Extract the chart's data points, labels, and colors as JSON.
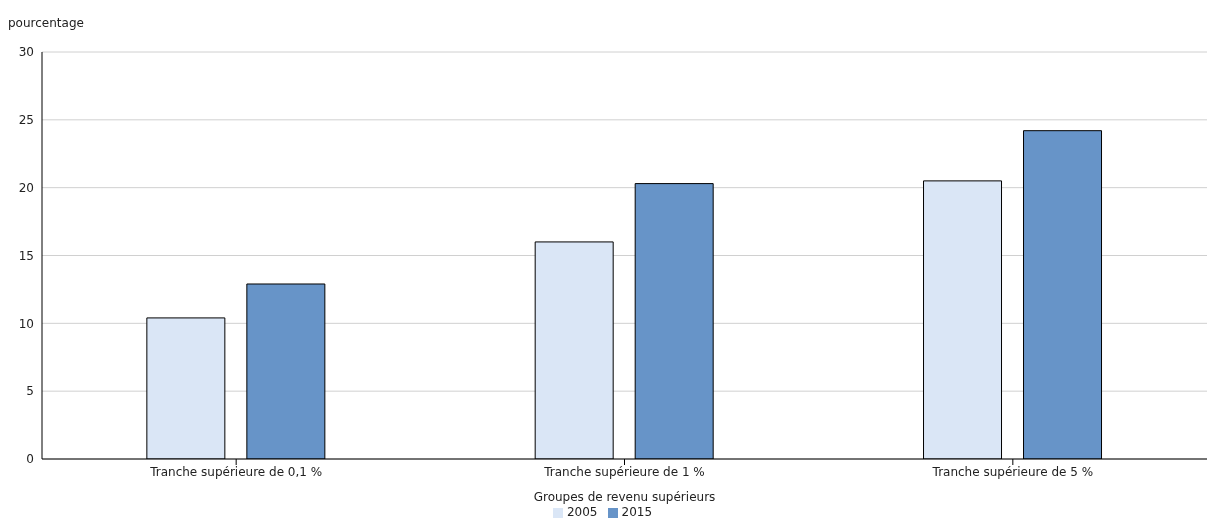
{
  "chart_data": {
    "type": "bar",
    "ylabel": "pourcentage",
    "xlabel": "Groupes de revenu supérieurs",
    "categories": [
      "Tranche supérieure de 0,1 %",
      "Tranche supérieure de 1 %",
      "Tranche supérieure de 5 %"
    ],
    "series": [
      {
        "name": "2005",
        "color": "#dae6f6",
        "values": [
          10.4,
          16.0,
          20.5
        ]
      },
      {
        "name": "2015",
        "color": "#6794c8",
        "values": [
          12.9,
          20.3,
          24.2
        ]
      }
    ],
    "ylim": [
      0,
      30
    ],
    "yticks": [
      0,
      5,
      10,
      15,
      20,
      25,
      30
    ],
    "grid": "y",
    "legend": "bottom"
  }
}
